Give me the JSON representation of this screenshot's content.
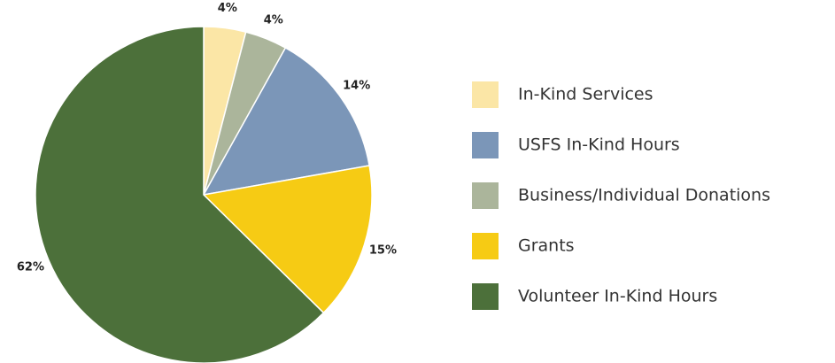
{
  "chart_data": {
    "type": "pie",
    "values": [
      4,
      4,
      14,
      15,
      62
    ],
    "value_labels": [
      "4%",
      "4%",
      "14%",
      "15%",
      "62%"
    ],
    "colors": [
      "#fbe6a6",
      "#abb59b",
      "#7b96b8",
      "#f6cb14",
      "#4c703a"
    ],
    "legend": [
      {
        "name": "In-Kind Services",
        "color": "#fbe6a6"
      },
      {
        "name": "USFS In-Kind Hours",
        "color": "#7b96b8"
      },
      {
        "name": "Business/Individual Donations",
        "color": "#abb59b"
      },
      {
        "name": "Grants",
        "color": "#f6cb14"
      },
      {
        "name": "Volunteer In-Kind Hours",
        "color": "#4c703a"
      }
    ]
  }
}
